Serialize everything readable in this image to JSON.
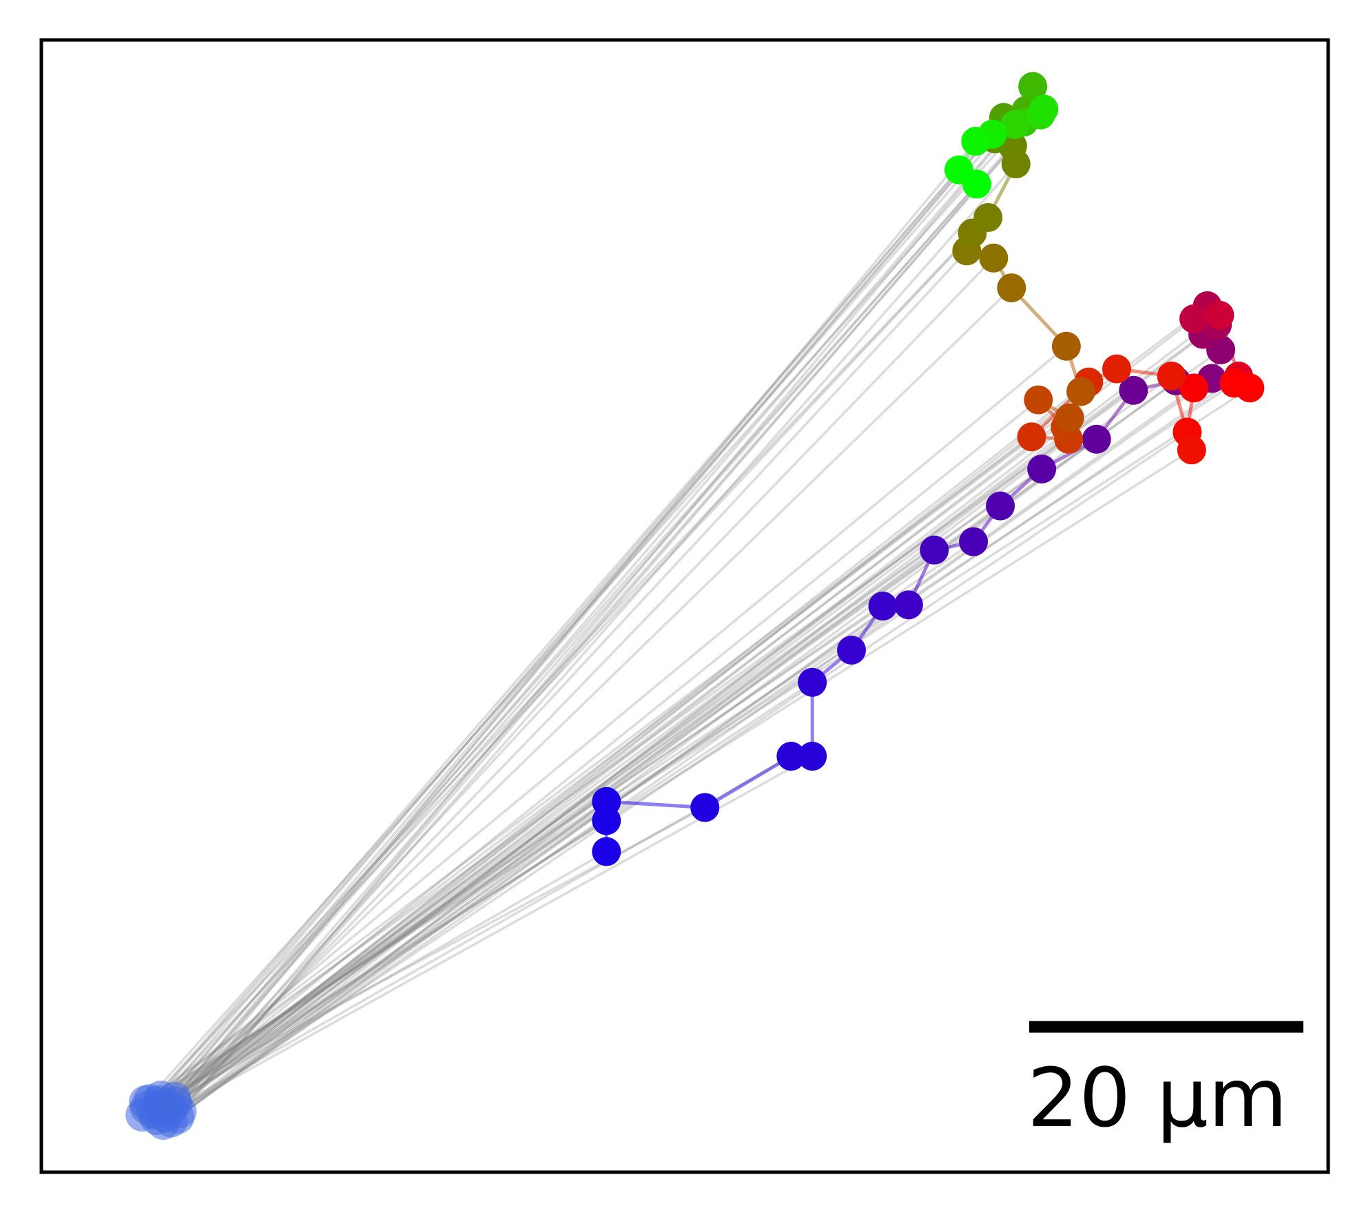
{
  "chart_data": {
    "type": "scatter",
    "title": "",
    "xlabel": "",
    "ylabel": "",
    "units": "µm",
    "xlim": [
      -10,
      105
    ],
    "ylim": [
      -5,
      90
    ],
    "grid": false,
    "legend": "none",
    "scale_bar": {
      "label": "20 µm",
      "length": 24.5
    },
    "colors": {
      "connector": "#808080",
      "origin": "#4169e1",
      "frame": "#000000"
    },
    "origin_cluster": [
      [
        0.0,
        0.0
      ],
      [
        0.8,
        0.6
      ],
      [
        1.6,
        0.3
      ],
      [
        -0.6,
        0.4
      ],
      [
        0.3,
        -0.5
      ],
      [
        1.1,
        -0.3
      ],
      [
        2.0,
        0.8
      ],
      [
        -0.3,
        1.0
      ],
      [
        0.7,
        1.3
      ],
      [
        1.6,
        -0.7
      ],
      [
        2.4,
        0.1
      ],
      [
        -1.0,
        -0.2
      ],
      [
        0.5,
        0.9
      ],
      [
        1.9,
        1.2
      ],
      [
        1.2,
        0.5
      ],
      [
        -0.7,
        0.9
      ],
      [
        2.2,
        -0.4
      ],
      [
        0.9,
        -0.9
      ]
    ],
    "trajectory": [
      {
        "x": 40.5,
        "y": 21.9,
        "color": "#1a00e6"
      },
      {
        "x": 40.5,
        "y": 24.5,
        "color": "#1a00e6"
      },
      {
        "x": 40.5,
        "y": 26.1,
        "color": "#1a00e6"
      },
      {
        "x": 49.3,
        "y": 25.6,
        "color": "#2000e0"
      },
      {
        "x": 57.0,
        "y": 29.9,
        "color": "#2800da"
      },
      {
        "x": 58.9,
        "y": 29.9,
        "color": "#2800da"
      },
      {
        "x": 58.9,
        "y": 36.1,
        "color": "#3000d5"
      },
      {
        "x": 62.4,
        "y": 38.8,
        "color": "#3600d0"
      },
      {
        "x": 65.2,
        "y": 42.5,
        "color": "#3a00cb"
      },
      {
        "x": 67.5,
        "y": 42.6,
        "color": "#3e00c6"
      },
      {
        "x": 69.8,
        "y": 47.2,
        "color": "#4400bd"
      },
      {
        "x": 73.3,
        "y": 47.9,
        "color": "#4a00b6"
      },
      {
        "x": 75.7,
        "y": 50.9,
        "color": "#5000ae"
      },
      {
        "x": 79.4,
        "y": 54.0,
        "color": "#5800a5"
      },
      {
        "x": 84.3,
        "y": 56.5,
        "color": "#62009c"
      },
      {
        "x": 87.6,
        "y": 60.6,
        "color": "#6c0092"
      },
      {
        "x": 91.4,
        "y": 61.4,
        "color": "#780088"
      },
      {
        "x": 94.6,
        "y": 61.6,
        "color": "#84007c"
      },
      {
        "x": 95.4,
        "y": 64.0,
        "color": "#8e0070"
      },
      {
        "x": 93.8,
        "y": 65.3,
        "color": "#9a0064"
      },
      {
        "x": 95.1,
        "y": 66.1,
        "color": "#a60058"
      },
      {
        "x": 94.2,
        "y": 67.7,
        "color": "#b2004c"
      },
      {
        "x": 93.0,
        "y": 66.6,
        "color": "#c00040"
      },
      {
        "x": 95.3,
        "y": 66.9,
        "color": "#cc0036"
      },
      {
        "x": 97.0,
        "y": 61.8,
        "color": "#e00020"
      },
      {
        "x": 98.0,
        "y": 60.8,
        "color": "#ff0000"
      },
      {
        "x": 96.6,
        "y": 61.2,
        "color": "#ff0000"
      },
      {
        "x": 93.0,
        "y": 60.8,
        "color": "#f70000"
      },
      {
        "x": 92.4,
        "y": 57.1,
        "color": "#f40800"
      },
      {
        "x": 92.8,
        "y": 55.6,
        "color": "#ee1000"
      },
      {
        "x": 91.0,
        "y": 61.8,
        "color": "#e81800"
      },
      {
        "x": 86.1,
        "y": 62.4,
        "color": "#e22000"
      },
      {
        "x": 83.6,
        "y": 61.3,
        "color": "#dc2800"
      },
      {
        "x": 78.5,
        "y": 56.7,
        "color": "#d43000"
      },
      {
        "x": 81.8,
        "y": 56.5,
        "color": "#cc3a00"
      },
      {
        "x": 81.5,
        "y": 57.5,
        "color": "#c84000"
      },
      {
        "x": 79.1,
        "y": 59.8,
        "color": "#c24600"
      },
      {
        "x": 81.9,
        "y": 58.3,
        "color": "#bc4c00"
      },
      {
        "x": 82.9,
        "y": 60.5,
        "color": "#b45400"
      },
      {
        "x": 81.6,
        "y": 64.3,
        "color": "#a65e00"
      },
      {
        "x": 76.7,
        "y": 69.2,
        "color": "#986a00"
      },
      {
        "x": 75.1,
        "y": 71.7,
        "color": "#8c7200"
      },
      {
        "x": 72.7,
        "y": 72.3,
        "color": "#847800"
      },
      {
        "x": 73.2,
        "y": 73.8,
        "color": "#7e7c00"
      },
      {
        "x": 74.6,
        "y": 75.1,
        "color": "#787e00"
      },
      {
        "x": 77.1,
        "y": 79.6,
        "color": "#728200"
      },
      {
        "x": 76.8,
        "y": 81.1,
        "color": "#6c8600"
      },
      {
        "x": 75.2,
        "y": 81.7,
        "color": "#608e00"
      },
      {
        "x": 76.0,
        "y": 83.5,
        "color": "#50a000"
      },
      {
        "x": 78.0,
        "y": 84.1,
        "color": "#48ae00"
      },
      {
        "x": 78.6,
        "y": 86.1,
        "color": "#3eb800"
      },
      {
        "x": 77.8,
        "y": 83.1,
        "color": "#34c600"
      },
      {
        "x": 77.0,
        "y": 82.9,
        "color": "#2cd400"
      },
      {
        "x": 79.3,
        "y": 83.7,
        "color": "#26dc00"
      },
      {
        "x": 79.6,
        "y": 84.2,
        "color": "#20e000"
      },
      {
        "x": 75.0,
        "y": 82.1,
        "color": "#14ec00"
      },
      {
        "x": 73.5,
        "y": 81.5,
        "color": "#0cf400"
      },
      {
        "x": 72.0,
        "y": 79.1,
        "color": "#06fa00"
      },
      {
        "x": 73.6,
        "y": 77.9,
        "color": "#00ff00"
      }
    ]
  }
}
